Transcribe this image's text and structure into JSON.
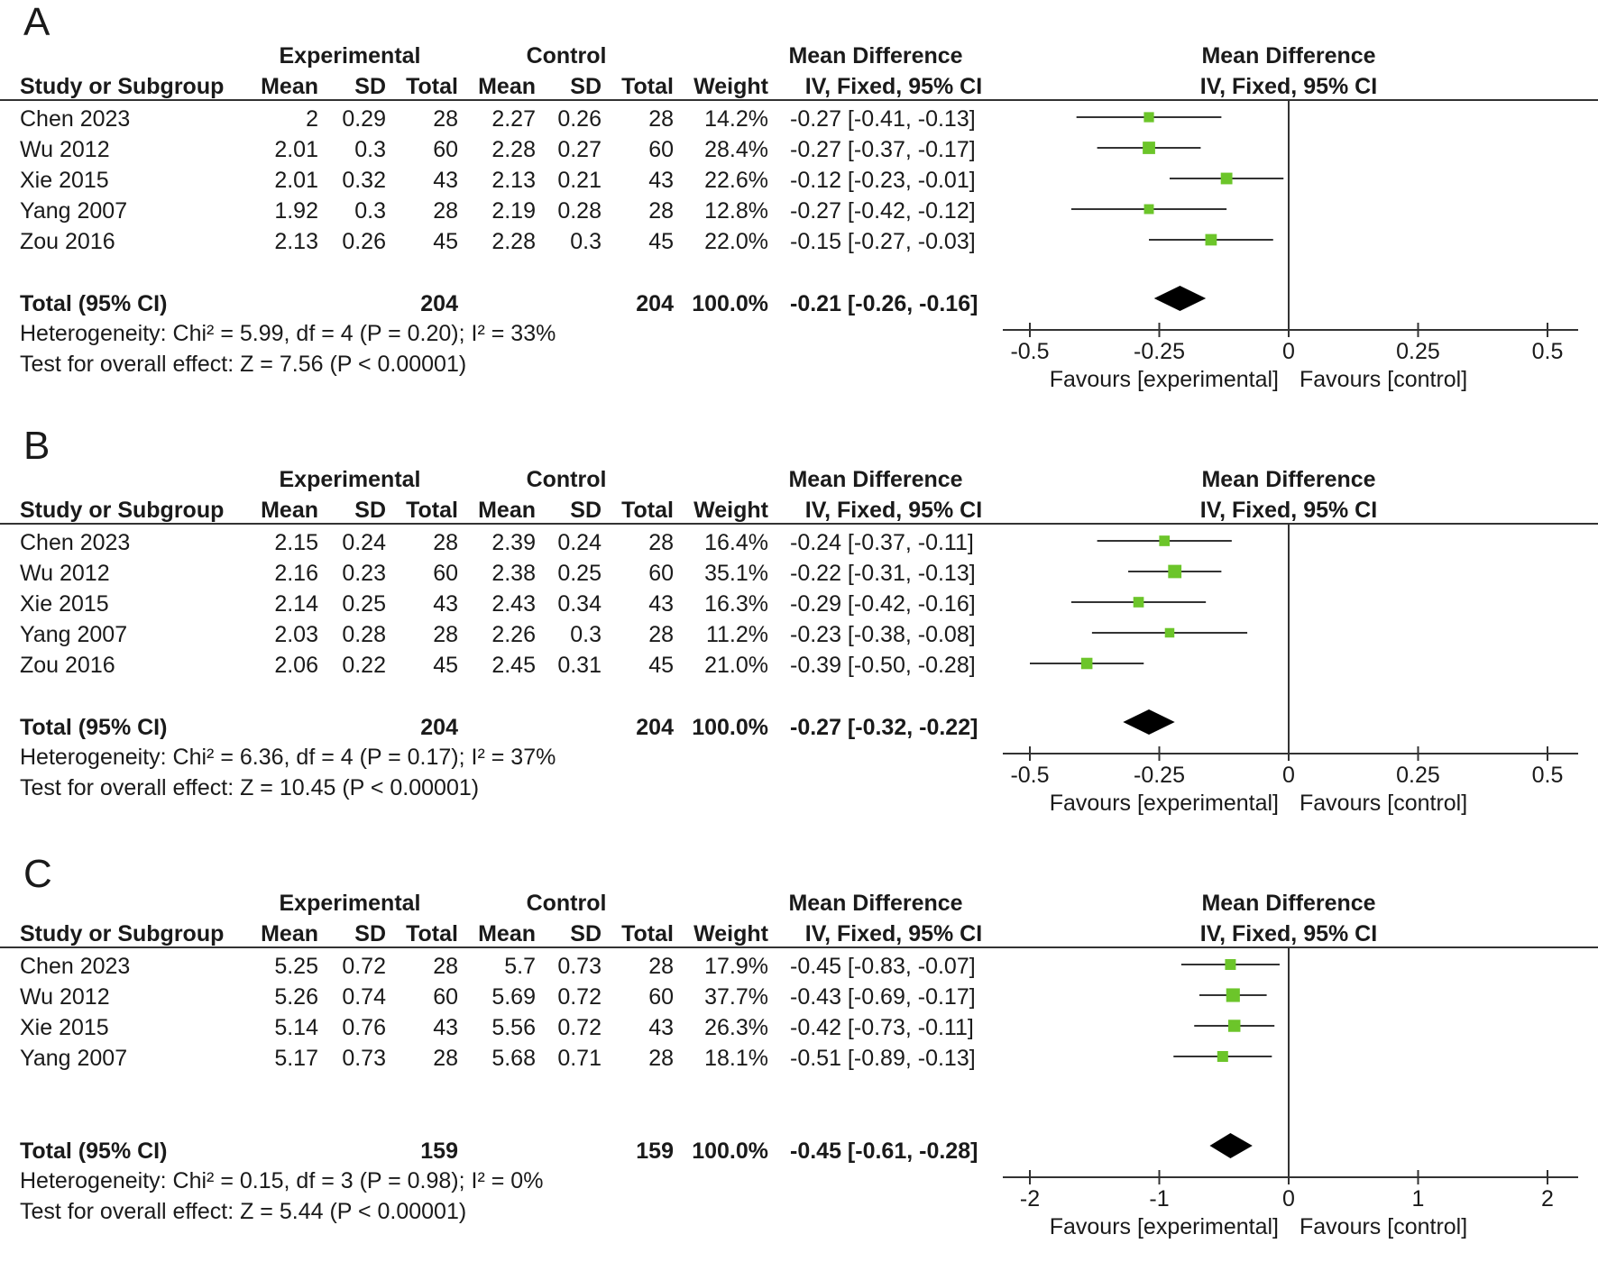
{
  "headers": {
    "experimental": "Experimental",
    "control": "Control",
    "mean_difference": "Mean Difference",
    "study": "Study or Subgroup",
    "mean": "Mean",
    "sd": "SD",
    "total": "Total",
    "weight": "Weight",
    "method": "IV, Fixed, 95% CI",
    "favours_experimental": "Favours [experimental]",
    "favours_control": "Favours [control]"
  },
  "chart_data": [
    {
      "type": "forest",
      "panel": "A",
      "studies": [
        {
          "name": "Chen 2023",
          "e_mean": "2",
          "e_sd": "0.29",
          "e_total": "28",
          "c_mean": "2.27",
          "c_sd": "0.26",
          "c_total": "28",
          "weight": "14.2%",
          "ci_text": "-0.27 [-0.41, -0.13]",
          "md": -0.27,
          "lo": -0.41,
          "hi": -0.13,
          "w": 14.2
        },
        {
          "name": "Wu 2012",
          "e_mean": "2.01",
          "e_sd": "0.3",
          "e_total": "60",
          "c_mean": "2.28",
          "c_sd": "0.27",
          "c_total": "60",
          "weight": "28.4%",
          "ci_text": "-0.27 [-0.37, -0.17]",
          "md": -0.27,
          "lo": -0.37,
          "hi": -0.17,
          "w": 28.4
        },
        {
          "name": "Xie 2015",
          "e_mean": "2.01",
          "e_sd": "0.32",
          "e_total": "43",
          "c_mean": "2.13",
          "c_sd": "0.21",
          "c_total": "43",
          "weight": "22.6%",
          "ci_text": "-0.12 [-0.23, -0.01]",
          "md": -0.12,
          "lo": -0.23,
          "hi": -0.01,
          "w": 22.6
        },
        {
          "name": "Yang 2007",
          "e_mean": "1.92",
          "e_sd": "0.3",
          "e_total": "28",
          "c_mean": "2.19",
          "c_sd": "0.28",
          "c_total": "28",
          "weight": "12.8%",
          "ci_text": "-0.27 [-0.42, -0.12]",
          "md": -0.27,
          "lo": -0.42,
          "hi": -0.12,
          "w": 12.8
        },
        {
          "name": "Zou 2016",
          "e_mean": "2.13",
          "e_sd": "0.26",
          "e_total": "45",
          "c_mean": "2.28",
          "c_sd": "0.3",
          "c_total": "45",
          "weight": "22.0%",
          "ci_text": "-0.15 [-0.27, -0.03]",
          "md": -0.15,
          "lo": -0.27,
          "hi": -0.03,
          "w": 22.0
        }
      ],
      "total": {
        "label": "Total (95% CI)",
        "e_total": "204",
        "c_total": "204",
        "weight": "100.0%",
        "ci_text": "-0.21 [-0.26, -0.16]",
        "md": -0.21,
        "lo": -0.26,
        "hi": -0.16
      },
      "heterogeneity": "Heterogeneity: Chi² = 5.99, df = 4 (P = 0.20); I² = 33%",
      "overall": "Test for overall effect: Z = 7.56 (P < 0.00001)",
      "xlim": [
        -0.5,
        0.5
      ],
      "ticks": [
        -0.5,
        -0.25,
        0,
        0.25,
        0.5
      ],
      "tick_labels": [
        "-0.5",
        "-0.25",
        "0",
        "0.25",
        "0.5"
      ]
    },
    {
      "type": "forest",
      "panel": "B",
      "studies": [
        {
          "name": "Chen 2023",
          "e_mean": "2.15",
          "e_sd": "0.24",
          "e_total": "28",
          "c_mean": "2.39",
          "c_sd": "0.24",
          "c_total": "28",
          "weight": "16.4%",
          "ci_text": "-0.24 [-0.37, -0.11]",
          "md": -0.24,
          "lo": -0.37,
          "hi": -0.11,
          "w": 16.4
        },
        {
          "name": "Wu 2012",
          "e_mean": "2.16",
          "e_sd": "0.23",
          "e_total": "60",
          "c_mean": "2.38",
          "c_sd": "0.25",
          "c_total": "60",
          "weight": "35.1%",
          "ci_text": "-0.22 [-0.31, -0.13]",
          "md": -0.22,
          "lo": -0.31,
          "hi": -0.13,
          "w": 35.1
        },
        {
          "name": "Xie 2015",
          "e_mean": "2.14",
          "e_sd": "0.25",
          "e_total": "43",
          "c_mean": "2.43",
          "c_sd": "0.34",
          "c_total": "43",
          "weight": "16.3%",
          "ci_text": "-0.29 [-0.42, -0.16]",
          "md": -0.29,
          "lo": -0.42,
          "hi": -0.16,
          "w": 16.3
        },
        {
          "name": "Yang 2007",
          "e_mean": "2.03",
          "e_sd": "0.28",
          "e_total": "28",
          "c_mean": "2.26",
          "c_sd": "0.3",
          "c_total": "28",
          "weight": "11.2%",
          "ci_text": "-0.23 [-0.38, -0.08]",
          "md": -0.23,
          "lo": -0.38,
          "hi": -0.08,
          "w": 11.2
        },
        {
          "name": "Zou 2016",
          "e_mean": "2.06",
          "e_sd": "0.22",
          "e_total": "45",
          "c_mean": "2.45",
          "c_sd": "0.31",
          "c_total": "45",
          "weight": "21.0%",
          "ci_text": "-0.39 [-0.50, -0.28]",
          "md": -0.39,
          "lo": -0.5,
          "hi": -0.28,
          "w": 21.0
        }
      ],
      "total": {
        "label": "Total (95% CI)",
        "e_total": "204",
        "c_total": "204",
        "weight": "100.0%",
        "ci_text": "-0.27 [-0.32, -0.22]",
        "md": -0.27,
        "lo": -0.32,
        "hi": -0.22
      },
      "heterogeneity": "Heterogeneity: Chi² = 6.36, df = 4 (P = 0.17); I² = 37%",
      "overall": "Test for overall effect: Z = 10.45 (P < 0.00001)",
      "xlim": [
        -0.5,
        0.5
      ],
      "ticks": [
        -0.5,
        -0.25,
        0,
        0.25,
        0.5
      ],
      "tick_labels": [
        "-0.5",
        "-0.25",
        "0",
        "0.25",
        "0.5"
      ]
    },
    {
      "type": "forest",
      "panel": "C",
      "studies": [
        {
          "name": "Chen 2023",
          "e_mean": "5.25",
          "e_sd": "0.72",
          "e_total": "28",
          "c_mean": "5.7",
          "c_sd": "0.73",
          "c_total": "28",
          "weight": "17.9%",
          "ci_text": "-0.45 [-0.83, -0.07]",
          "md": -0.45,
          "lo": -0.83,
          "hi": -0.07,
          "w": 17.9
        },
        {
          "name": "Wu 2012",
          "e_mean": "5.26",
          "e_sd": "0.74",
          "e_total": "60",
          "c_mean": "5.69",
          "c_sd": "0.72",
          "c_total": "60",
          "weight": "37.7%",
          "ci_text": "-0.43 [-0.69, -0.17]",
          "md": -0.43,
          "lo": -0.69,
          "hi": -0.17,
          "w": 37.7
        },
        {
          "name": "Xie 2015",
          "e_mean": "5.14",
          "e_sd": "0.76",
          "e_total": "43",
          "c_mean": "5.56",
          "c_sd": "0.72",
          "c_total": "43",
          "weight": "26.3%",
          "ci_text": "-0.42 [-0.73, -0.11]",
          "md": -0.42,
          "lo": -0.73,
          "hi": -0.11,
          "w": 26.3
        },
        {
          "name": "Yang 2007",
          "e_mean": "5.17",
          "e_sd": "0.73",
          "e_total": "28",
          "c_mean": "5.68",
          "c_sd": "0.71",
          "c_total": "28",
          "weight": "18.1%",
          "ci_text": "-0.51 [-0.89, -0.13]",
          "md": -0.51,
          "lo": -0.89,
          "hi": -0.13,
          "w": 18.1
        }
      ],
      "total": {
        "label": "Total (95% CI)",
        "e_total": "159",
        "c_total": "159",
        "weight": "100.0%",
        "ci_text": "-0.45 [-0.61, -0.28]",
        "md": -0.45,
        "lo": -0.61,
        "hi": -0.28
      },
      "heterogeneity": "Heterogeneity: Chi² = 0.15, df = 3 (P = 0.98); I² = 0%",
      "overall": "Test for overall effect: Z = 5.44 (P < 0.00001)",
      "xlim": [
        -2,
        2
      ],
      "ticks": [
        -2,
        -1,
        0,
        1,
        2
      ],
      "tick_labels": [
        "-2",
        "-1",
        "0",
        "1",
        "2"
      ]
    }
  ],
  "colors": {
    "marker": "#6cc52a",
    "line": "#333333",
    "diamond": "#000000"
  }
}
